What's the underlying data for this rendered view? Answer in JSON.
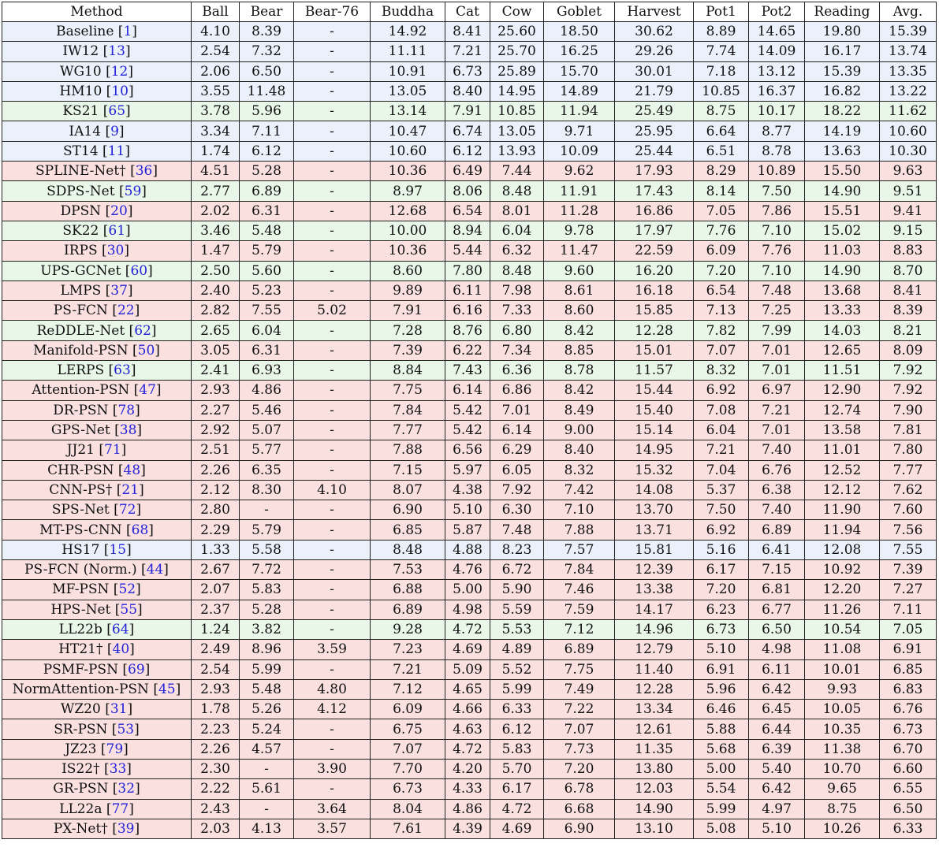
{
  "columns": [
    "Method",
    "Ball",
    "Bear",
    "Bear-76",
    "Buddha",
    "Cat",
    "Cow",
    "Goblet",
    "Harvest",
    "Pot1",
    "Pot2",
    "Reading",
    "Avg."
  ],
  "colors": {
    "blue": "#eaf1fb",
    "green": "#e9f7e8",
    "red": "#fbe0e0",
    "link": "#2323d8"
  },
  "rows": [
    {
      "name": "Baseline",
      "ref": "1",
      "c": "blue",
      "v": [
        "4.10",
        "8.39",
        "-",
        "14.92",
        "8.41",
        "25.60",
        "18.50",
        "30.62",
        "8.89",
        "14.65",
        "19.80",
        "15.39"
      ]
    },
    {
      "name": "IW12",
      "ref": "13",
      "c": "blue",
      "v": [
        "2.54",
        "7.32",
        "-",
        "11.11",
        "7.21",
        "25.70",
        "16.25",
        "29.26",
        "7.74",
        "14.09",
        "16.17",
        "13.74"
      ]
    },
    {
      "name": "WG10",
      "ref": "12",
      "c": "blue",
      "v": [
        "2.06",
        "6.50",
        "-",
        "10.91",
        "6.73",
        "25.89",
        "15.70",
        "30.01",
        "7.18",
        "13.12",
        "15.39",
        "13.35"
      ]
    },
    {
      "name": "HM10",
      "ref": "10",
      "c": "blue",
      "v": [
        "3.55",
        "11.48",
        "-",
        "13.05",
        "8.40",
        "14.95",
        "14.89",
        "21.79",
        "10.85",
        "16.37",
        "16.82",
        "13.22"
      ]
    },
    {
      "name": "KS21",
      "ref": "65",
      "c": "green",
      "v": [
        "3.78",
        "5.96",
        "-",
        "13.14",
        "7.91",
        "10.85",
        "11.94",
        "25.49",
        "8.75",
        "10.17",
        "18.22",
        "11.62"
      ]
    },
    {
      "name": "IA14",
      "ref": "9",
      "c": "blue",
      "v": [
        "3.34",
        "7.11",
        "-",
        "10.47",
        "6.74",
        "13.05",
        "9.71",
        "25.95",
        "6.64",
        "8.77",
        "14.19",
        "10.60"
      ]
    },
    {
      "name": "ST14",
      "ref": "11",
      "c": "blue",
      "v": [
        "1.74",
        "6.12",
        "-",
        "10.60",
        "6.12",
        "13.93",
        "10.09",
        "25.44",
        "6.51",
        "8.78",
        "13.63",
        "10.30"
      ]
    },
    {
      "name": "SPLINE-Net†",
      "ref": "36",
      "c": "red",
      "v": [
        "4.51",
        "5.28",
        "-",
        "10.36",
        "6.49",
        "7.44",
        "9.62",
        "17.93",
        "8.29",
        "10.89",
        "15.50",
        "9.63"
      ]
    },
    {
      "name": "SDPS-Net",
      "ref": "59",
      "c": "green",
      "v": [
        "2.77",
        "6.89",
        "-",
        "8.97",
        "8.06",
        "8.48",
        "11.91",
        "17.43",
        "8.14",
        "7.50",
        "14.90",
        "9.51"
      ]
    },
    {
      "name": "DPSN",
      "ref": "20",
      "c": "red",
      "v": [
        "2.02",
        "6.31",
        "-",
        "12.68",
        "6.54",
        "8.01",
        "11.28",
        "16.86",
        "7.05",
        "7.86",
        "15.51",
        "9.41"
      ]
    },
    {
      "name": "SK22",
      "ref": "61",
      "c": "green",
      "v": [
        "3.46",
        "5.48",
        "-",
        "10.00",
        "8.94",
        "6.04",
        "9.78",
        "17.97",
        "7.76",
        "7.10",
        "15.02",
        "9.15"
      ]
    },
    {
      "name": "IRPS",
      "ref": "30",
      "c": "red",
      "v": [
        "1.47",
        "5.79",
        "-",
        "10.36",
        "5.44",
        "6.32",
        "11.47",
        "22.59",
        "6.09",
        "7.76",
        "11.03",
        "8.83"
      ]
    },
    {
      "name": "UPS-GCNet",
      "ref": "60",
      "c": "green",
      "v": [
        "2.50",
        "5.60",
        "-",
        "8.60",
        "7.80",
        "8.48",
        "9.60",
        "16.20",
        "7.20",
        "7.10",
        "14.90",
        "8.70"
      ]
    },
    {
      "name": "LMPS",
      "ref": "37",
      "c": "red",
      "v": [
        "2.40",
        "5.23",
        "-",
        "9.89",
        "6.11",
        "7.98",
        "8.61",
        "16.18",
        "6.54",
        "7.48",
        "13.68",
        "8.41"
      ]
    },
    {
      "name": "PS-FCN",
      "ref": "22",
      "c": "red",
      "v": [
        "2.82",
        "7.55",
        "5.02",
        "7.91",
        "6.16",
        "7.33",
        "8.60",
        "15.85",
        "7.13",
        "7.25",
        "13.33",
        "8.39"
      ]
    },
    {
      "name": "ReDDLE-Net",
      "ref": "62",
      "c": "green",
      "v": [
        "2.65",
        "6.04",
        "-",
        "7.28",
        "8.76",
        "6.80",
        "8.42",
        "12.28",
        "7.82",
        "7.99",
        "14.03",
        "8.21"
      ]
    },
    {
      "name": "Manifold-PSN",
      "ref": "50",
      "c": "red",
      "v": [
        "3.05",
        "6.31",
        "-",
        "7.39",
        "6.22",
        "7.34",
        "8.85",
        "15.01",
        "7.07",
        "7.01",
        "12.65",
        "8.09"
      ]
    },
    {
      "name": "LERPS",
      "ref": "63",
      "c": "green",
      "v": [
        "2.41",
        "6.93",
        "-",
        "8.84",
        "7.43",
        "6.36",
        "8.78",
        "11.57",
        "8.32",
        "7.01",
        "11.51",
        "7.92"
      ]
    },
    {
      "name": "Attention-PSN",
      "ref": "47",
      "c": "red",
      "v": [
        "2.93",
        "4.86",
        "-",
        "7.75",
        "6.14",
        "6.86",
        "8.42",
        "15.44",
        "6.92",
        "6.97",
        "12.90",
        "7.92"
      ]
    },
    {
      "name": "DR-PSN",
      "ref": "78",
      "c": "red",
      "v": [
        "2.27",
        "5.46",
        "-",
        "7.84",
        "5.42",
        "7.01",
        "8.49",
        "15.40",
        "7.08",
        "7.21",
        "12.74",
        "7.90"
      ]
    },
    {
      "name": "GPS-Net",
      "ref": "38",
      "c": "red",
      "v": [
        "2.92",
        "5.07",
        "-",
        "7.77",
        "5.42",
        "6.14",
        "9.00",
        "15.14",
        "6.04",
        "7.01",
        "13.58",
        "7.81"
      ]
    },
    {
      "name": "JJ21",
      "ref": "71",
      "c": "red",
      "v": [
        "2.51",
        "5.77",
        "-",
        "7.88",
        "6.56",
        "6.29",
        "8.40",
        "14.95",
        "7.21",
        "7.40",
        "11.01",
        "7.80"
      ]
    },
    {
      "name": "CHR-PSN",
      "ref": "48",
      "c": "red",
      "v": [
        "2.26",
        "6.35",
        "-",
        "7.15",
        "5.97",
        "6.05",
        "8.32",
        "15.32",
        "7.04",
        "6.76",
        "12.52",
        "7.77"
      ]
    },
    {
      "name": "CNN-PS†",
      "ref": "21",
      "c": "red",
      "v": [
        "2.12",
        "8.30",
        "4.10",
        "8.07",
        "4.38",
        "7.92",
        "7.42",
        "14.08",
        "5.37",
        "6.38",
        "12.12",
        "7.62"
      ]
    },
    {
      "name": "SPS-Net",
      "ref": "72",
      "c": "red",
      "v": [
        "2.80",
        "-",
        "-",
        "6.90",
        "5.10",
        "6.30",
        "7.10",
        "13.70",
        "7.50",
        "7.40",
        "11.90",
        "7.60"
      ]
    },
    {
      "name": "MT-PS-CNN",
      "ref": "68",
      "c": "red",
      "v": [
        "2.29",
        "5.79",
        "-",
        "6.85",
        "5.87",
        "7.48",
        "7.88",
        "13.71",
        "6.92",
        "6.89",
        "11.94",
        "7.56"
      ]
    },
    {
      "name": "HS17",
      "ref": "15",
      "c": "blue",
      "v": [
        "1.33",
        "5.58",
        "-",
        "8.48",
        "4.88",
        "8.23",
        "7.57",
        "15.81",
        "5.16",
        "6.41",
        "12.08",
        "7.55"
      ]
    },
    {
      "name": "PS-FCN (Norm.)",
      "ref": "44",
      "c": "red",
      "v": [
        "2.67",
        "7.72",
        "-",
        "7.53",
        "4.76",
        "6.72",
        "7.84",
        "12.39",
        "6.17",
        "7.15",
        "10.92",
        "7.39"
      ]
    },
    {
      "name": "MF-PSN",
      "ref": "52",
      "c": "red",
      "v": [
        "2.07",
        "5.83",
        "-",
        "6.88",
        "5.00",
        "5.90",
        "7.46",
        "13.38",
        "7.20",
        "6.81",
        "12.20",
        "7.27"
      ]
    },
    {
      "name": "HPS-Net",
      "ref": "55",
      "c": "red",
      "v": [
        "2.37",
        "5.28",
        "-",
        "6.89",
        "4.98",
        "5.59",
        "7.59",
        "14.17",
        "6.23",
        "6.77",
        "11.26",
        "7.11"
      ]
    },
    {
      "name": "LL22b",
      "ref": "64",
      "c": "green",
      "v": [
        "1.24",
        "3.82",
        "-",
        "9.28",
        "4.72",
        "5.53",
        "7.12",
        "14.96",
        "6.73",
        "6.50",
        "10.54",
        "7.05"
      ]
    },
    {
      "name": "HT21†",
      "ref": "40",
      "c": "red",
      "v": [
        "2.49",
        "8.96",
        "3.59",
        "7.23",
        "4.69",
        "4.89",
        "6.89",
        "12.79",
        "5.10",
        "4.98",
        "11.08",
        "6.91"
      ]
    },
    {
      "name": "PSMF-PSN",
      "ref": "69",
      "c": "red",
      "v": [
        "2.54",
        "5.99",
        "-",
        "7.21",
        "5.09",
        "5.52",
        "7.75",
        "11.40",
        "6.91",
        "6.11",
        "10.01",
        "6.85"
      ]
    },
    {
      "name": "NormAttention-PSN",
      "ref": "45",
      "c": "red",
      "v": [
        "2.93",
        "5.48",
        "4.80",
        "7.12",
        "4.65",
        "5.99",
        "7.49",
        "12.28",
        "5.96",
        "6.42",
        "9.93",
        "6.83"
      ]
    },
    {
      "name": "WZ20",
      "ref": "31",
      "c": "red",
      "v": [
        "1.78",
        "5.26",
        "4.12",
        "6.09",
        "4.66",
        "6.33",
        "7.22",
        "13.34",
        "6.46",
        "6.45",
        "10.05",
        "6.76"
      ]
    },
    {
      "name": "SR-PSN",
      "ref": "53",
      "c": "red",
      "v": [
        "2.23",
        "5.24",
        "-",
        "6.75",
        "4.63",
        "6.12",
        "7.07",
        "12.61",
        "5.88",
        "6.44",
        "10.35",
        "6.73"
      ]
    },
    {
      "name": "JZ23",
      "ref": "79",
      "c": "red",
      "v": [
        "2.26",
        "4.57",
        "-",
        "7.07",
        "4.72",
        "5.83",
        "7.73",
        "11.35",
        "5.68",
        "6.39",
        "11.38",
        "6.70"
      ]
    },
    {
      "name": "IS22†",
      "ref": "33",
      "c": "red",
      "v": [
        "2.30",
        "-",
        "3.90",
        "7.70",
        "4.20",
        "5.70",
        "7.20",
        "13.80",
        "5.00",
        "5.40",
        "10.70",
        "6.60"
      ]
    },
    {
      "name": "GR-PSN",
      "ref": "32",
      "c": "red",
      "v": [
        "2.22",
        "5.61",
        "-",
        "6.73",
        "4.33",
        "6.17",
        "6.78",
        "12.03",
        "5.54",
        "6.42",
        "9.65",
        "6.55"
      ]
    },
    {
      "name": "LL22a",
      "ref": "77",
      "c": "red",
      "v": [
        "2.43",
        "-",
        "3.64",
        "8.04",
        "4.86",
        "4.72",
        "6.68",
        "14.90",
        "5.99",
        "4.97",
        "8.75",
        "6.50"
      ]
    },
    {
      "name": "PX-Net†",
      "ref": "39",
      "c": "red",
      "v": [
        "2.03",
        "4.13",
        "3.57",
        "7.61",
        "4.39",
        "4.69",
        "6.90",
        "13.10",
        "5.08",
        "5.10",
        "10.26",
        "6.33"
      ]
    }
  ]
}
